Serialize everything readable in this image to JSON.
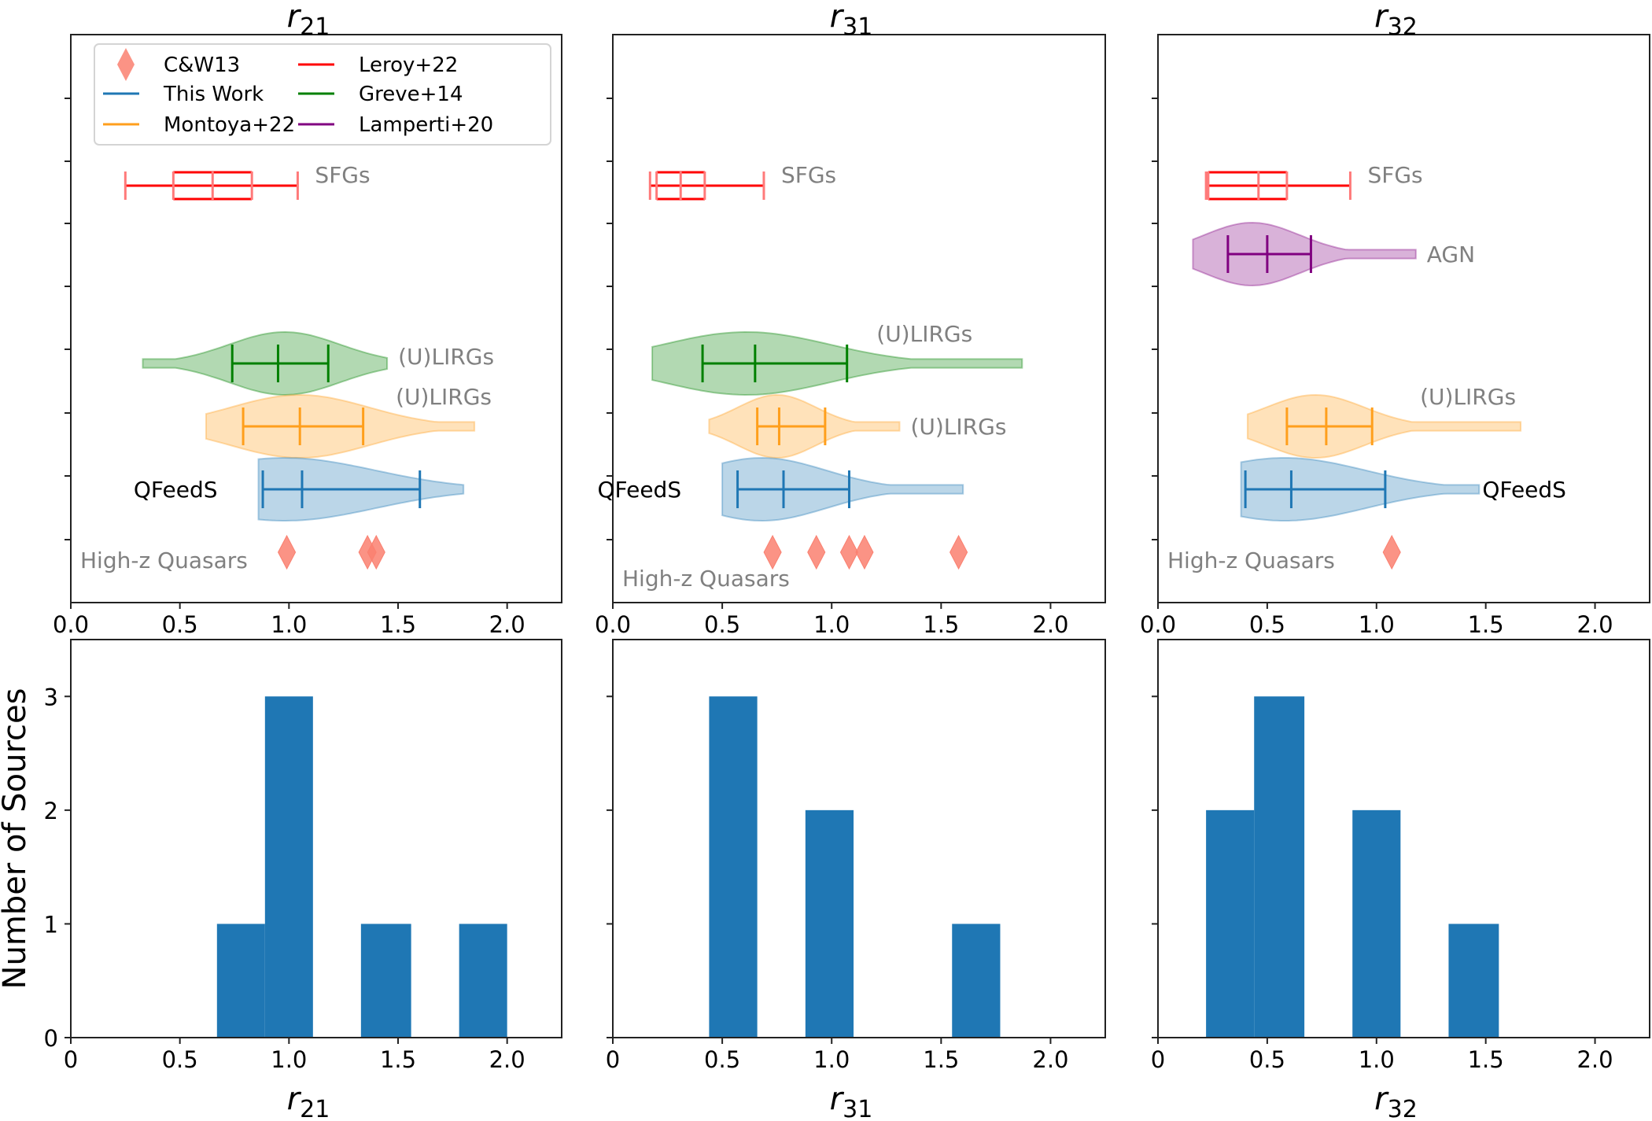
{
  "chart_data": {
    "type": "violin+histogram",
    "ylabel_bottom": "Number of Sources",
    "xlim": [
      0,
      2.25
    ],
    "x_ticks_top": [
      "0.0",
      "0.5",
      "1.0",
      "1.5",
      "2.0"
    ],
    "x_ticks_bottom": [
      "0",
      "0.5",
      "1.0",
      "1.5",
      "2.0"
    ],
    "x_tick_values": [
      0,
      0.5,
      1.0,
      1.5,
      2.0
    ],
    "hist_ylim": [
      0,
      3.5
    ],
    "hist_y_ticks": [
      0,
      1,
      2,
      3
    ],
    "legend": {
      "placement": "top-left (first panel)",
      "entries": [
        {
          "label": "C&W13",
          "marker": "diamond",
          "color": "#fa8070"
        },
        {
          "label": "This Work",
          "marker": "line",
          "color": "#1f77b4"
        },
        {
          "label": "Montoya+22",
          "marker": "line",
          "color": "#ff9f1c"
        },
        {
          "label": "Leroy+22",
          "marker": "line",
          "color": "#ff0000"
        },
        {
          "label": "Greve+14",
          "marker": "line",
          "color": "#008000"
        },
        {
          "label": "Lamperti+20",
          "marker": "line",
          "color": "#800080"
        }
      ]
    },
    "colors": {
      "this_work": "#1f77b4",
      "montoya": "#ff9f1c",
      "greve": "#008000",
      "leroy": "#ff0000",
      "lamperti": "#800080",
      "cw13": "#fa8070",
      "hist": "#1f77b4",
      "label_gray": "#808080"
    },
    "panels": [
      {
        "title_base": "r",
        "title_sub": "21",
        "xlabel_base": "r",
        "xlabel_sub": "21",
        "sfgs": {
          "label": "SFGs",
          "min": 0.25,
          "q1": 0.47,
          "median": 0.65,
          "q3": 0.83,
          "max": 1.04
        },
        "violins": [
          {
            "key": "greve",
            "label": "(U)LIRGs",
            "label_color": "gray",
            "label_pos": "right",
            "min": 0.33,
            "max": 1.45,
            "p16": 0.74,
            "median": 0.95,
            "p84": 1.18,
            "peak": 0.98,
            "slot": 4
          },
          {
            "key": "montoya",
            "label": "(U)LIRGs",
            "label_color": "gray",
            "label_pos": "right-above",
            "min": 0.62,
            "max": 1.85,
            "p16": 0.79,
            "median": 1.05,
            "p84": 1.34,
            "peak": 1.05,
            "slot": 3
          },
          {
            "key": "this_work",
            "label": "QFeedS",
            "label_color": "black",
            "label_pos": "left",
            "min": 0.86,
            "max": 1.8,
            "p16": 0.88,
            "median": 1.06,
            "p84": 1.6,
            "peak": 0.98,
            "slot": 2
          }
        ],
        "quasars": {
          "label": "High-z Quasars",
          "values": [
            0.99,
            1.36,
            1.4
          ]
        },
        "hist": {
          "bin_edges": [
            0.67,
            0.89,
            1.11,
            1.33,
            1.56,
            1.78,
            2.0
          ],
          "counts": [
            1,
            3,
            0,
            1,
            0,
            1
          ]
        }
      },
      {
        "title_base": "r",
        "title_sub": "31",
        "xlabel_base": "r",
        "xlabel_sub": "31",
        "sfgs": {
          "label": "SFGs",
          "min": 0.17,
          "q1": 0.2,
          "median": 0.31,
          "q3": 0.42,
          "max": 0.69
        },
        "violins": [
          {
            "key": "greve",
            "label": "(U)LIRGs",
            "label_color": "gray",
            "label_pos": "right-above",
            "min": 0.18,
            "max": 1.87,
            "p16": 0.41,
            "median": 0.65,
            "p84": 1.07,
            "peak": 0.61,
            "slot": 4
          },
          {
            "key": "montoya",
            "label": "(U)LIRGs",
            "label_color": "gray",
            "label_pos": "right",
            "min": 0.44,
            "max": 1.31,
            "p16": 0.66,
            "median": 0.76,
            "p84": 0.97,
            "peak": 0.75,
            "slot": 3
          },
          {
            "key": "this_work",
            "label": "QFeedS",
            "label_color": "black",
            "label_pos": "left",
            "min": 0.5,
            "max": 1.6,
            "p16": 0.57,
            "median": 0.78,
            "p84": 1.08,
            "peak": 0.68,
            "slot": 2
          }
        ],
        "quasars": {
          "label": "High-z Quasars",
          "values": [
            0.73,
            0.93,
            1.08,
            1.15,
            1.58
          ]
        },
        "hist": {
          "bin_edges": [
            0.44,
            0.66,
            0.88,
            1.1,
            1.33,
            1.55,
            1.77
          ],
          "counts": [
            3,
            0,
            2,
            0,
            0,
            1
          ]
        }
      },
      {
        "title_base": "r",
        "title_sub": "32",
        "xlabel_base": "r",
        "xlabel_sub": "32",
        "sfgs": {
          "label": "SFGs",
          "min": 0.22,
          "q1": 0.23,
          "median": 0.46,
          "q3": 0.59,
          "max": 0.88
        },
        "agn": {
          "key": "lamperti",
          "label": "AGN",
          "min": 0.16,
          "max": 1.18,
          "p16": 0.32,
          "median": 0.5,
          "p84": 0.7,
          "peak": 0.43
        },
        "violins": [
          {
            "key": "montoya",
            "label": "(U)LIRGs",
            "label_color": "gray",
            "label_pos": "right-above",
            "min": 0.41,
            "max": 1.66,
            "p16": 0.59,
            "median": 0.77,
            "p84": 0.98,
            "peak": 0.72,
            "slot": 3
          },
          {
            "key": "this_work",
            "label": "QFeedS",
            "label_color": "black",
            "label_pos": "right",
            "min": 0.38,
            "max": 1.47,
            "p16": 0.4,
            "median": 0.61,
            "p84": 1.04,
            "peak": 0.58,
            "slot": 2
          }
        ],
        "quasars": {
          "label": "High-z Quasars",
          "values": [
            1.07
          ]
        },
        "hist": {
          "bin_edges": [
            0.22,
            0.44,
            0.67,
            0.89,
            1.11,
            1.33,
            1.56
          ],
          "counts": [
            2,
            3,
            0,
            2,
            0,
            1
          ]
        }
      }
    ]
  }
}
